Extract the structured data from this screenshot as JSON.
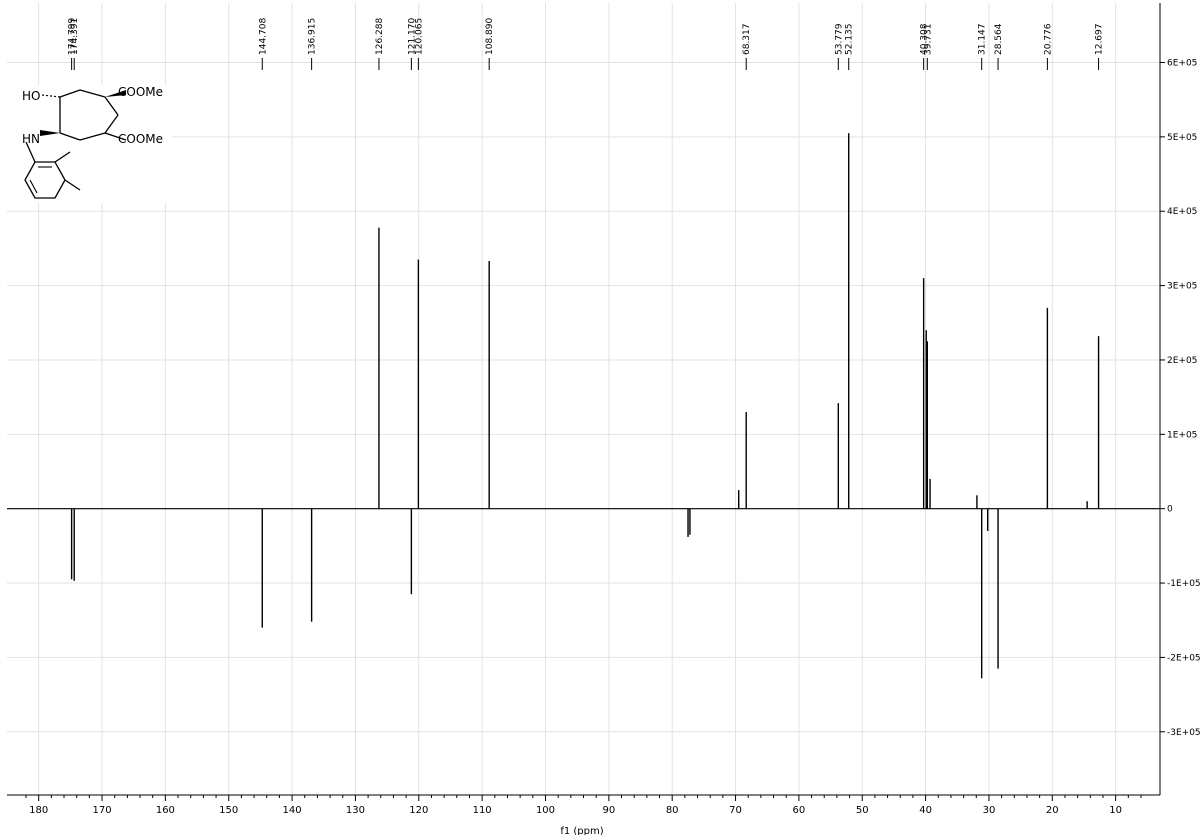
{
  "chart_data": {
    "type": "line",
    "xlabel": "f1 (ppm)",
    "ylabel": "",
    "title": "",
    "xlim": [
      185,
      3
    ],
    "ylim": [
      -385000,
      680000
    ],
    "x_ticks": [
      180,
      170,
      160,
      150,
      140,
      130,
      120,
      110,
      100,
      90,
      80,
      70,
      60,
      50,
      40,
      30,
      20,
      10
    ],
    "x_tick_labels": [
      "180",
      "170",
      "160",
      "150",
      "140",
      "130",
      "120",
      "110",
      "100",
      "90",
      "80",
      "70",
      "60",
      "50",
      "40",
      "30",
      "20",
      "10"
    ],
    "y_ticks": [
      600000,
      500000,
      400000,
      300000,
      200000,
      100000,
      0,
      -100000,
      -200000,
      -300000
    ],
    "y_tick_labels": [
      "6E+05",
      "5E+05",
      "4E+05",
      "3E+05",
      "2E+05",
      "1E+05",
      "0",
      "-1E+05",
      "-2E+05",
      "-3E+05"
    ],
    "grid": true,
    "peak_labels": [
      "174.799",
      "174.391",
      "144.708",
      "136.915",
      "126.288",
      "121.170",
      "120.065",
      "108.890",
      "68.317",
      "53.779",
      "52.135",
      "40.308",
      "39.731",
      "31.147",
      "28.564",
      "20.776",
      "12.697"
    ],
    "peaks": [
      {
        "x": 174.799,
        "y": -95000
      },
      {
        "x": 174.391,
        "y": -97000
      },
      {
        "x": 144.708,
        "y": -160000
      },
      {
        "x": 136.915,
        "y": -152000
      },
      {
        "x": 126.288,
        "y": 378000
      },
      {
        "x": 121.17,
        "y": -115000
      },
      {
        "x": 120.065,
        "y": 335000
      },
      {
        "x": 108.89,
        "y": 333000
      },
      {
        "x": 77.5,
        "y": -38000
      },
      {
        "x": 77.2,
        "y": -35000
      },
      {
        "x": 69.5,
        "y": 25000
      },
      {
        "x": 68.317,
        "y": 130000
      },
      {
        "x": 53.779,
        "y": 142000
      },
      {
        "x": 52.135,
        "y": 505000
      },
      {
        "x": 40.308,
        "y": 310000
      },
      {
        "x": 39.9,
        "y": 240000
      },
      {
        "x": 39.731,
        "y": 225000
      },
      {
        "x": 39.3,
        "y": 40000
      },
      {
        "x": 31.9,
        "y": 18000
      },
      {
        "x": 31.147,
        "y": -228000
      },
      {
        "x": 30.2,
        "y": -30000
      },
      {
        "x": 28.564,
        "y": -215000
      },
      {
        "x": 20.776,
        "y": 270000
      },
      {
        "x": 14.5,
        "y": 10000
      },
      {
        "x": 12.697,
        "y": 232000
      }
    ]
  },
  "structure": {
    "labels": [
      "HO",
      "HN",
      "COOMe",
      "COOMe"
    ]
  }
}
